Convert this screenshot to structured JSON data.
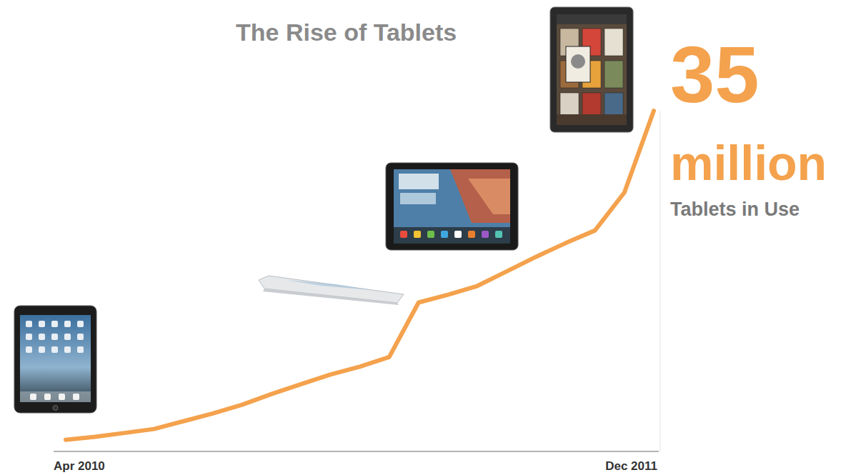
{
  "chart_data": {
    "type": "line",
    "title": "The Rise of Tablets",
    "categories": [
      "Apr 2010",
      null,
      null,
      null,
      null,
      null,
      null,
      null,
      null,
      null,
      null,
      null,
      null,
      null,
      null,
      null,
      null,
      null,
      null,
      null,
      "Dec 2011"
    ],
    "values": [
      1.2,
      1.5,
      1.9,
      2.3,
      3.1,
      3.9,
      4.8,
      5.9,
      6.9,
      7.9,
      8.7,
      9.7,
      15.3,
      16.1,
      17.0,
      18.5,
      20.0,
      21.4,
      22.7,
      26.6,
      35.0
    ],
    "color": "#f4a24d",
    "ylim": [
      0,
      35
    ],
    "yticks": [],
    "tick_labels": "x",
    "annotations": [
      "35",
      "million",
      "Tablets in Use"
    ]
  }
}
